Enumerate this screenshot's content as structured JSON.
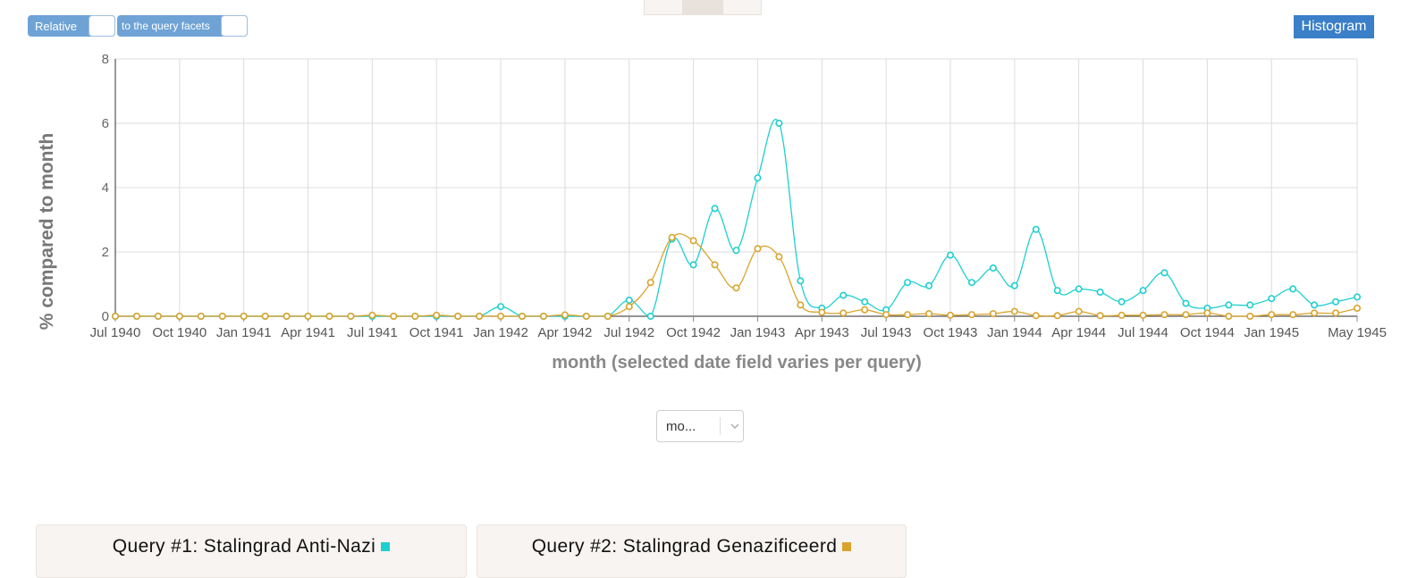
{
  "toggles": {
    "relative_label": "Relative",
    "facets_label": "to the query facets"
  },
  "histogram_button": "Histogram",
  "interval_select": {
    "value": "mo..."
  },
  "queries": [
    {
      "label": "Query #1: Stalingrad Anti-Nazi",
      "color": "#1fcfcf"
    },
    {
      "label": "Query #2: Stalingrad Genazificeerd",
      "color": "#d8a42c"
    }
  ],
  "chart_data": {
    "type": "line",
    "xlabel": "month (selected date field varies per query)",
    "ylabel": "% compared to month",
    "ylim": [
      0,
      8
    ],
    "yticks": [
      0,
      2,
      4,
      6,
      8
    ],
    "grid": true,
    "x_tick_labels": [
      "Jul 1940",
      "Oct 1940",
      "Jan 1941",
      "Apr 1941",
      "Jul 1941",
      "Oct 1941",
      "Jan 1942",
      "Apr 1942",
      "Jul 1942",
      "Oct 1942",
      "Jan 1943",
      "Apr 1943",
      "Jul 1943",
      "Oct 1943",
      "Jan 1944",
      "Apr 1944",
      "Jul 1944",
      "Oct 1944",
      "Jan 1945",
      "May 1945"
    ],
    "x": [
      "Jul 1940",
      "Aug 1940",
      "Sep 1940",
      "Oct 1940",
      "Nov 1940",
      "Dec 1940",
      "Jan 1941",
      "Feb 1941",
      "Mar 1941",
      "Apr 1941",
      "May 1941",
      "Jun 1941",
      "Jul 1941",
      "Aug 1941",
      "Sep 1941",
      "Oct 1941",
      "Nov 1941",
      "Dec 1941",
      "Jan 1942",
      "Feb 1942",
      "Mar 1942",
      "Apr 1942",
      "May 1942",
      "Jun 1942",
      "Jul 1942",
      "Aug 1942",
      "Sep 1942",
      "Oct 1942",
      "Nov 1942",
      "Dec 1942",
      "Jan 1943",
      "Feb 1943",
      "Mar 1943",
      "Apr 1943",
      "May 1943",
      "Jun 1943",
      "Jul 1943",
      "Aug 1943",
      "Sep 1943",
      "Oct 1943",
      "Nov 1943",
      "Dec 1943",
      "Jan 1944",
      "Feb 1944",
      "Mar 1944",
      "Apr 1944",
      "May 1944",
      "Jun 1944",
      "Jul 1944",
      "Aug 1944",
      "Sep 1944",
      "Oct 1944",
      "Nov 1944",
      "Dec 1944",
      "Jan 1945",
      "Feb 1945",
      "Mar 1945",
      "Apr 1945",
      "May 1945"
    ],
    "series": [
      {
        "name": "Query #1: Stalingrad Anti-Nazi",
        "color": "#1fcfcf",
        "values": [
          0,
          0,
          0,
          0,
          0,
          0,
          0,
          0,
          0,
          0,
          0,
          0,
          0,
          0,
          0,
          0,
          0,
          0,
          0.3,
          0,
          0,
          0,
          0,
          0,
          0.5,
          0,
          2.4,
          1.6,
          3.35,
          2.05,
          4.3,
          6.0,
          1.1,
          0.25,
          0.65,
          0.45,
          0.2,
          1.05,
          0.95,
          1.9,
          1.05,
          1.5,
          0.95,
          2.7,
          0.8,
          0.85,
          0.75,
          0.45,
          0.8,
          1.35,
          0.4,
          0.25,
          0.35,
          0.35,
          0.55,
          0.85,
          0.35,
          0.45,
          0.6
        ]
      },
      {
        "name": "Query #2: Stalingrad Genazificeerd",
        "color": "#d8a42c",
        "values": [
          0,
          0,
          0,
          0,
          0,
          0,
          0,
          0,
          0,
          0,
          0,
          0,
          0.03,
          0,
          0,
          0.03,
          0,
          0,
          0,
          0,
          0,
          0.04,
          0,
          0,
          0.3,
          1.05,
          2.45,
          2.35,
          1.6,
          0.88,
          2.1,
          1.85,
          0.35,
          0.12,
          0.1,
          0.2,
          0.05,
          0.05,
          0.08,
          0.03,
          0.05,
          0.08,
          0.15,
          0.02,
          0.02,
          0.15,
          0.02,
          0.03,
          0.03,
          0.05,
          0.05,
          0.1,
          0,
          0,
          0.05,
          0.05,
          0.1,
          0.1,
          0.25
        ]
      }
    ]
  }
}
